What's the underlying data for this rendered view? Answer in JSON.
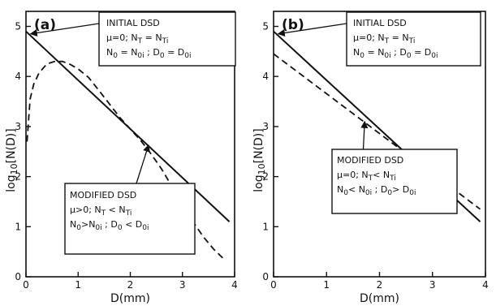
{
  "chart_data": [
    {
      "type": "line",
      "panel_label": "(a)",
      "xlabel": "D(mm)",
      "ylabel": "log10[N(D)]",
      "xlim": [
        0,
        4
      ],
      "ylim": [
        0,
        5.3
      ],
      "x_ticks": [
        0,
        1,
        2,
        3,
        4
      ],
      "y_ticks": [
        0,
        1,
        2,
        3,
        4,
        5
      ],
      "grid": false,
      "series": [
        {
          "style": "solid",
          "x": [
            0,
            3.9
          ],
          "y": [
            4.9,
            1.1
          ]
        },
        {
          "style": "dashed",
          "x": [
            0.02,
            0.08,
            0.15,
            0.25,
            0.4,
            0.55,
            0.7,
            0.85,
            1.0,
            1.2,
            1.4,
            1.6,
            1.8,
            2.0,
            2.2,
            2.4,
            2.6,
            2.8,
            3.0,
            3.2,
            3.4,
            3.6,
            3.8
          ],
          "y": [
            2.7,
            3.55,
            3.85,
            4.07,
            4.25,
            4.3,
            4.3,
            4.24,
            4.15,
            3.98,
            3.72,
            3.45,
            3.18,
            2.95,
            2.72,
            2.45,
            2.15,
            1.8,
            1.45,
            1.1,
            0.8,
            0.55,
            0.35
          ]
        }
      ],
      "annotations": {
        "initial": {
          "lines": [
            "INITIAL  DSD",
            "μ=0;  N_T = N_Ti",
            "N_0 = N_0i ;  D_0 = D_0i"
          ],
          "arrow_to": [
            0.04,
            4.85
          ]
        },
        "modified": {
          "lines": [
            "MODIFIED  DSD",
            "μ>0;   N_T < N_Ti",
            "N_0>N_0i  ;  D_0 < D_0i"
          ],
          "arrow_to": [
            2.35,
            2.68
          ]
        }
      }
    },
    {
      "type": "line",
      "panel_label": "(b)",
      "xlabel": "D(mm)",
      "ylabel": "log10[N(D)]",
      "xlim": [
        0,
        4
      ],
      "ylim": [
        0,
        5.3
      ],
      "x_ticks": [
        0,
        1,
        2,
        3,
        4
      ],
      "y_ticks": [
        0,
        1,
        2,
        3,
        4,
        5
      ],
      "grid": false,
      "series": [
        {
          "style": "solid",
          "x": [
            0,
            3.9
          ],
          "y": [
            4.9,
            1.1
          ]
        },
        {
          "style": "dashed",
          "x": [
            0,
            3.9
          ],
          "y": [
            4.45,
            1.35
          ]
        }
      ],
      "annotations": {
        "initial": {
          "lines": [
            "INITIAL  DSD",
            "μ=0;   N_T = N_Ti",
            "N_0 = N_0i ; D_0 = D_0i"
          ],
          "arrow_to": [
            0.04,
            4.85
          ]
        },
        "modified": {
          "lines": [
            "MODIFIED  DSD",
            "μ=0;  N_T< N_Ti",
            "N_0< N_0i ; D_0> D_0i"
          ],
          "arrow_to": [
            1.72,
            3.15
          ]
        }
      }
    }
  ]
}
